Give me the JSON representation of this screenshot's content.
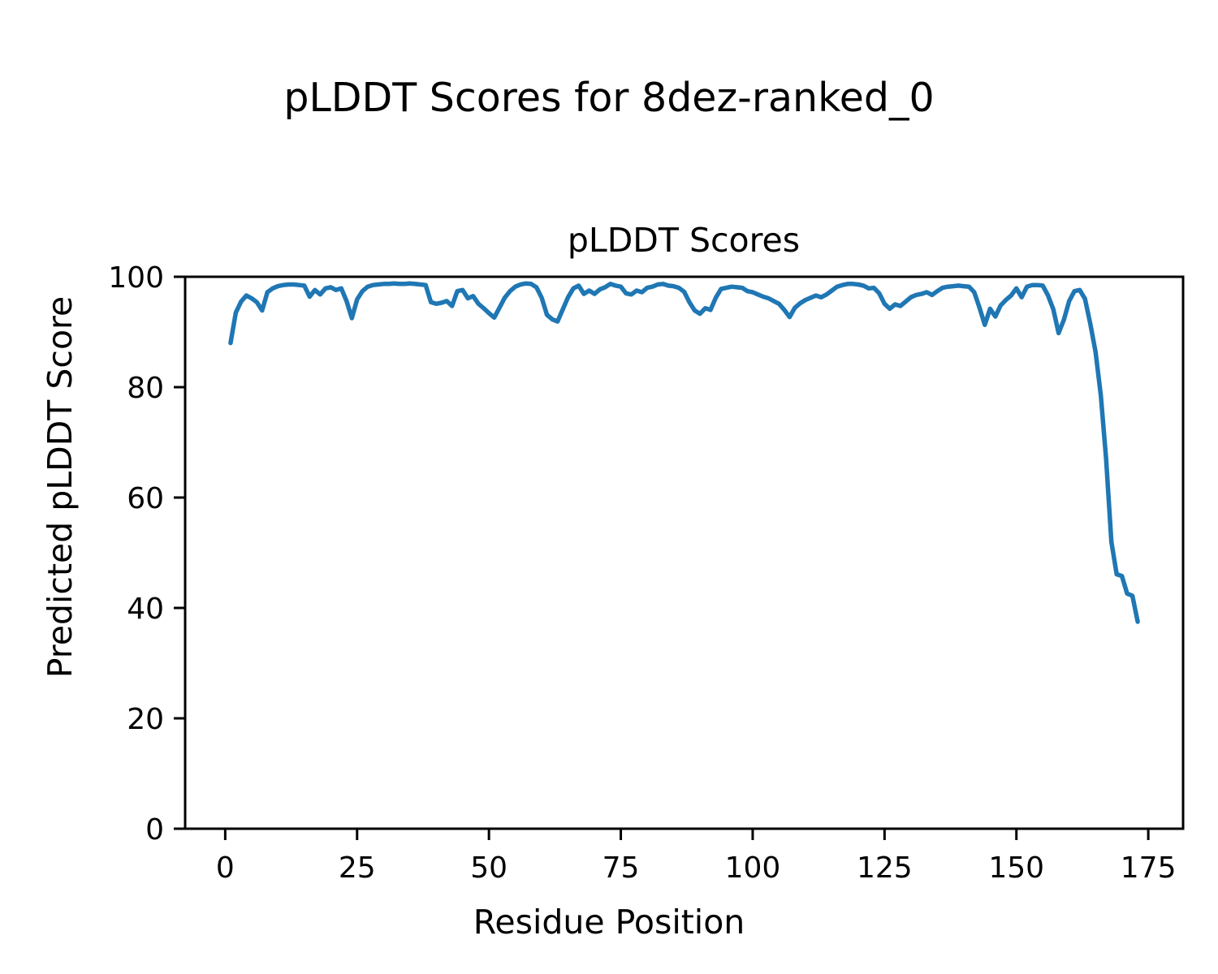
{
  "figure": {
    "suptitle": "pLDDT Scores for 8dez-ranked_0",
    "background_color": "#ffffff",
    "text_color": "#000000"
  },
  "chart_data": {
    "type": "line",
    "title": "pLDDT Scores",
    "xlabel": "Residue Position",
    "ylabel": "Predicted pLDDT Score",
    "x_ticks": [
      0,
      25,
      50,
      75,
      100,
      125,
      150,
      175
    ],
    "y_ticks": [
      0,
      20,
      40,
      60,
      80,
      100
    ],
    "xlim": [
      -7.6,
      181.6
    ],
    "ylim": [
      0,
      100
    ],
    "grid": false,
    "legend": "none",
    "line_color": "#1f77b4",
    "spine_color": "#000000",
    "series": [
      {
        "name": "pLDDT",
        "x_start": 1,
        "x_step": 1,
        "values": [
          88.0,
          93.5,
          95.5,
          96.6,
          96.1,
          95.4,
          93.9,
          97.2,
          97.9,
          98.3,
          98.5,
          98.6,
          98.6,
          98.5,
          98.4,
          96.4,
          97.6,
          96.8,
          97.9,
          98.1,
          97.6,
          97.9,
          95.6,
          92.5,
          95.9,
          97.4,
          98.2,
          98.5,
          98.6,
          98.7,
          98.7,
          98.8,
          98.7,
          98.7,
          98.8,
          98.7,
          98.6,
          98.5,
          95.4,
          95.1,
          95.3,
          95.6,
          94.7,
          97.4,
          97.6,
          96.1,
          96.5,
          95.1,
          94.3,
          93.4,
          92.6,
          94.4,
          96.2,
          97.4,
          98.2,
          98.6,
          98.8,
          98.7,
          98.1,
          96.2,
          93.1,
          92.3,
          91.9,
          94.1,
          96.3,
          97.9,
          98.4,
          96.9,
          97.5,
          96.9,
          97.7,
          98.1,
          98.7,
          98.4,
          98.2,
          97.0,
          96.8,
          97.5,
          97.2,
          98.0,
          98.2,
          98.6,
          98.7,
          98.4,
          98.3,
          98.0,
          97.3,
          95.4,
          93.9,
          93.3,
          94.3,
          94.0,
          96.2,
          97.8,
          98.0,
          98.2,
          98.1,
          98.0,
          97.4,
          97.2,
          96.8,
          96.4,
          96.1,
          95.6,
          95.1,
          94.0,
          92.7,
          94.4,
          95.2,
          95.8,
          96.2,
          96.6,
          96.3,
          96.8,
          97.5,
          98.2,
          98.5,
          98.7,
          98.7,
          98.6,
          98.4,
          97.9,
          98.0,
          97.0,
          95.1,
          94.2,
          95.0,
          94.7,
          95.5,
          96.3,
          96.7,
          96.9,
          97.2,
          96.7,
          97.4,
          98.0,
          98.2,
          98.3,
          98.4,
          98.3,
          98.2,
          97.2,
          94.4,
          91.3,
          94.2,
          92.8,
          94.8,
          95.8,
          96.6,
          97.9,
          96.3,
          98.2,
          98.5,
          98.5,
          98.4,
          96.6,
          94.1,
          89.8,
          92.2,
          95.6,
          97.4,
          97.6,
          96.0,
          91.5,
          86.4,
          78.5,
          67.0,
          52.0,
          46.1,
          45.8,
          42.6,
          42.2,
          37.5
        ]
      }
    ]
  }
}
